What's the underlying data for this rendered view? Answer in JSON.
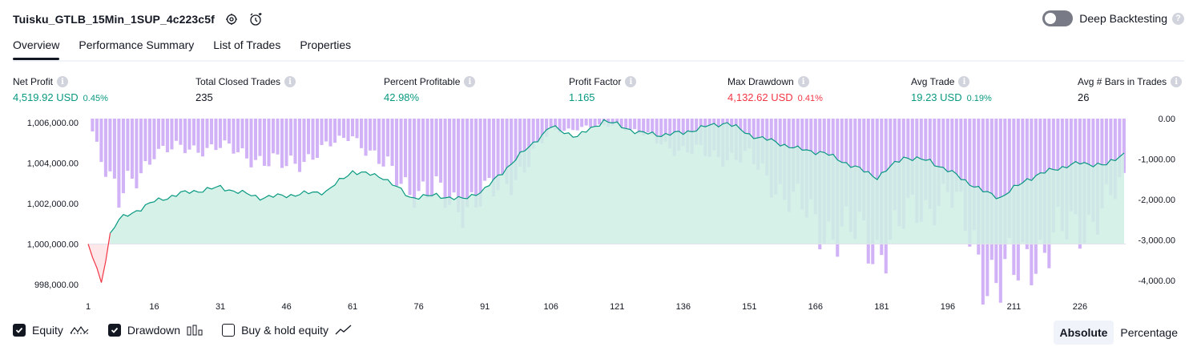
{
  "header": {
    "title": "Tuisku_GTLB_15Min_1SUP_4c223c5f",
    "deep_label": "Deep Backtesting",
    "help": "?"
  },
  "tabs": [
    "Overview",
    "Performance Summary",
    "List of Trades",
    "Properties"
  ],
  "stats": [
    {
      "label": "Net Profit",
      "value": "4,519.92 USD",
      "pct": "0.45%",
      "color": "green"
    },
    {
      "label": "Total Closed Trades",
      "value": "235",
      "pct": "",
      "color": "neutral"
    },
    {
      "label": "Percent Profitable",
      "value": "42.98%",
      "pct": "",
      "color": "green"
    },
    {
      "label": "Profit Factor",
      "value": "1.165",
      "pct": "",
      "color": "green"
    },
    {
      "label": "Max Drawdown",
      "value": "4,132.62 USD",
      "pct": "0.41%",
      "color": "red"
    },
    {
      "label": "Avg Trade",
      "value": "19.23 USD",
      "pct": "0.19%",
      "color": "green"
    },
    {
      "label": "Avg # Bars in Trades",
      "value": "26",
      "pct": "",
      "color": "neutral"
    }
  ],
  "chart_data": {
    "type": "line",
    "left_axis": {
      "ticks": [
        "1,006,000.00",
        "1,004,000.00",
        "1,002,000.00",
        "1,000,000.00",
        "998,000.00"
      ],
      "range": [
        997800,
        1006200
      ]
    },
    "right_axis": {
      "ticks": [
        "0.00",
        "-1,000.00",
        "-2,000.00",
        "-3,000.00",
        "-4,000.00"
      ],
      "range": [
        -4200,
        0
      ]
    },
    "x_ticks": [
      "1",
      "16",
      "31",
      "46",
      "61",
      "76",
      "91",
      "106",
      "121",
      "136",
      "151",
      "166",
      "181",
      "196",
      "211",
      "226"
    ],
    "series": [
      {
        "name": "Equity",
        "type": "line",
        "x": [
          1,
          4,
          6,
          8,
          16,
          22,
          31,
          40,
          46,
          55,
          61,
          68,
          74,
          80,
          86,
          91,
          98,
          106,
          112,
          118,
          121,
          126,
          131,
          136,
          141,
          146,
          151,
          156,
          162,
          168,
          174,
          180,
          186,
          192,
          198,
          204,
          208,
          214,
          220,
          226,
          232,
          236
        ],
        "y": [
          1000000,
          998100,
          1000500,
          1001200,
          1002100,
          1002500,
          1002800,
          1002300,
          1002400,
          1002600,
          1003600,
          1003300,
          1002300,
          1002400,
          1002200,
          1002700,
          1004200,
          1005800,
          1005300,
          1006100,
          1005900,
          1005500,
          1005400,
          1005500,
          1005800,
          1006000,
          1005400,
          1005100,
          1004700,
          1004500,
          1003900,
          1003300,
          1004300,
          1004100,
          1003400,
          1002600,
          1002300,
          1003200,
          1003700,
          1004000,
          1003900,
          1004500
        ]
      },
      {
        "name": "Drawdown",
        "type": "bar",
        "x": [
          1,
          8,
          16,
          31,
          40,
          46,
          61,
          68,
          76,
          85,
          91,
          100,
          106,
          121,
          136,
          151,
          166,
          175,
          180,
          186,
          196,
          205,
          210,
          215,
          226,
          236
        ],
        "y": [
          0,
          -2100,
          -800,
          -700,
          -1000,
          -1200,
          -400,
          -1200,
          -1800,
          -2100,
          -2000,
          -1200,
          -300,
          -150,
          -800,
          -1000,
          -2600,
          -2900,
          -3200,
          -2600,
          -1800,
          -3800,
          -4100,
          -3300,
          -2700,
          -1700
        ]
      }
    ],
    "legend": [
      "Equity",
      "Drawdown",
      "Buy & hold equity"
    ],
    "colors": {
      "equity": "#089981",
      "equity_fill": "#cfeee4",
      "negative": "#f23645",
      "drawdown": "#c9a4f5"
    }
  },
  "legend": {
    "equity": "Equity",
    "drawdown": "Drawdown",
    "buyhold": "Buy & hold equity"
  },
  "view": {
    "absolute": "Absolute",
    "percentage": "Percentage",
    "selected": "Absolute"
  }
}
